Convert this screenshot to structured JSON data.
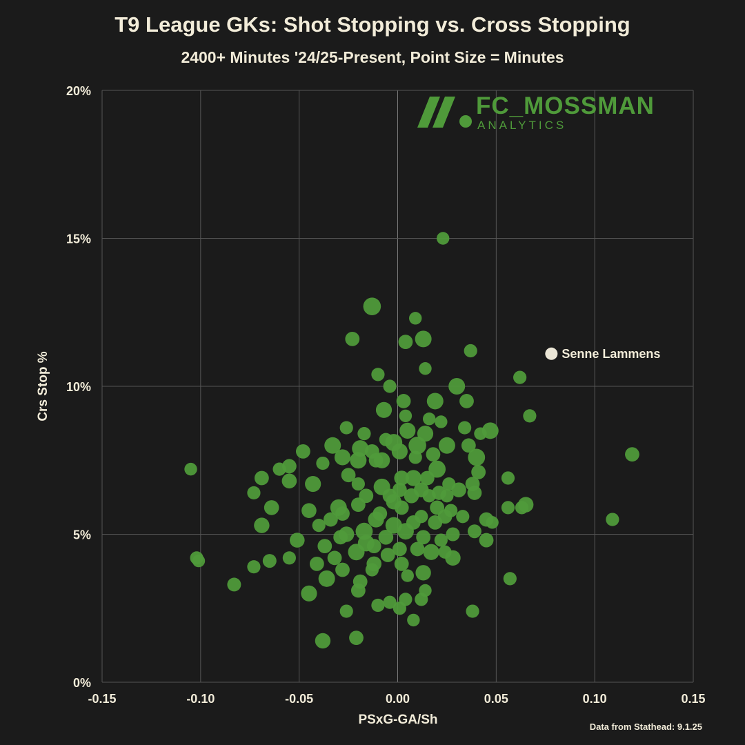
{
  "title": "T9 League GKs: Shot Stopping vs. Cross Stopping",
  "subtitle": "2400+ Minutes '24/25-Present, Point Size = Minutes",
  "source": "Data from Stathead: 9.1.25",
  "logo": {
    "main": "FC_MOSSMAN",
    "sub": "ANALYTICS"
  },
  "colors": {
    "background": "#1b1b1b",
    "point": "#4f9a3a",
    "highlight": "#ebe6d6",
    "text": "#f2ecd9",
    "grid": "#555555",
    "logo": "#4f9a3a"
  },
  "chart_data": {
    "type": "scatter",
    "title": "T9 League GKs: Shot Stopping vs. Cross Stopping",
    "xlabel": "PSxG-GA/Sh",
    "ylabel": "Crs Stop %",
    "xlim": [
      -0.15,
      0.15
    ],
    "ylim": [
      0,
      20
    ],
    "xticks": [
      -0.15,
      -0.1,
      -0.05,
      0.0,
      0.05,
      0.1,
      0.15
    ],
    "xtick_labels": [
      "-0.15",
      "-0.10",
      "-0.05",
      "0.00",
      "0.05",
      "0.10",
      "0.15"
    ],
    "yticks": [
      0,
      5,
      10,
      15,
      20
    ],
    "ytick_labels": [
      "0%",
      "5%",
      "10%",
      "15%",
      "20%"
    ],
    "grid": true,
    "size_encoding": "Minutes (relative)",
    "highlight": {
      "label": "Senne Lammens",
      "x": 0.078,
      "y": 11.1,
      "s": 0.4
    },
    "points": [
      [
        0.023,
        15.0,
        0.4
      ],
      [
        -0.013,
        12.7,
        0.85
      ],
      [
        0.009,
        12.3,
        0.4
      ],
      [
        -0.023,
        11.6,
        0.55
      ],
      [
        0.004,
        11.5,
        0.55
      ],
      [
        0.013,
        11.6,
        0.75
      ],
      [
        0.037,
        11.2,
        0.45
      ],
      [
        0.014,
        10.6,
        0.4
      ],
      [
        -0.01,
        10.4,
        0.45
      ],
      [
        0.062,
        10.3,
        0.45
      ],
      [
        0.03,
        10.0,
        0.75
      ],
      [
        -0.004,
        10.0,
        0.45
      ],
      [
        0.003,
        9.5,
        0.55
      ],
      [
        0.019,
        9.5,
        0.75
      ],
      [
        0.035,
        9.5,
        0.55
      ],
      [
        -0.007,
        9.2,
        0.7
      ],
      [
        0.004,
        9.0,
        0.4
      ],
      [
        0.067,
        9.0,
        0.45
      ],
      [
        0.016,
        8.9,
        0.4
      ],
      [
        -0.026,
        8.6,
        0.45
      ],
      [
        0.022,
        8.8,
        0.4
      ],
      [
        0.034,
        8.6,
        0.45
      ],
      [
        0.047,
        8.5,
        0.75
      ],
      [
        0.005,
        8.5,
        0.7
      ],
      [
        0.014,
        8.4,
        0.7
      ],
      [
        0.042,
        8.4,
        0.4
      ],
      [
        -0.017,
        8.4,
        0.45
      ],
      [
        -0.006,
        8.2,
        0.45
      ],
      [
        -0.002,
        8.1,
        0.8
      ],
      [
        0.01,
        8.0,
        0.85
      ],
      [
        0.025,
        8.0,
        0.75
      ],
      [
        0.036,
        8.0,
        0.55
      ],
      [
        -0.033,
        8.0,
        0.75
      ],
      [
        -0.019,
        7.9,
        0.75
      ],
      [
        -0.013,
        7.8,
        0.55
      ],
      [
        0.001,
        7.8,
        0.7
      ],
      [
        0.018,
        7.7,
        0.55
      ],
      [
        0.009,
        7.6,
        0.45
      ],
      [
        -0.048,
        7.8,
        0.55
      ],
      [
        -0.028,
        7.6,
        0.7
      ],
      [
        -0.02,
        7.5,
        0.75
      ],
      [
        -0.008,
        7.5,
        0.7
      ],
      [
        -0.011,
        7.5,
        0.55
      ],
      [
        0.04,
        7.6,
        0.8
      ],
      [
        0.119,
        7.7,
        0.55
      ],
      [
        -0.105,
        7.2,
        0.4
      ],
      [
        -0.06,
        7.2,
        0.45
      ],
      [
        -0.055,
        7.3,
        0.55
      ],
      [
        -0.038,
        7.4,
        0.45
      ],
      [
        0.02,
        7.2,
        0.8
      ],
      [
        0.041,
        7.1,
        0.55
      ],
      [
        0.002,
        6.9,
        0.6
      ],
      [
        0.008,
        6.9,
        0.7
      ],
      [
        0.015,
        6.9,
        0.55
      ],
      [
        -0.025,
        7.0,
        0.55
      ],
      [
        -0.069,
        6.9,
        0.55
      ],
      [
        -0.055,
        6.8,
        0.6
      ],
      [
        -0.043,
        6.7,
        0.7
      ],
      [
        0.056,
        6.9,
        0.45
      ],
      [
        0.038,
        6.7,
        0.55
      ],
      [
        0.026,
        6.7,
        0.45
      ],
      [
        -0.02,
        6.7,
        0.45
      ],
      [
        -0.008,
        6.6,
        0.75
      ],
      [
        0.001,
        6.5,
        0.55
      ],
      [
        0.012,
        6.5,
        0.6
      ],
      [
        0.021,
        6.4,
        0.55
      ],
      [
        0.031,
        6.5,
        0.6
      ],
      [
        -0.073,
        6.4,
        0.45
      ],
      [
        -0.016,
        6.3,
        0.55
      ],
      [
        -0.004,
        6.3,
        0.55
      ],
      [
        0.007,
        6.3,
        0.6
      ],
      [
        0.016,
        6.3,
        0.45
      ],
      [
        0.025,
        6.3,
        0.45
      ],
      [
        0.039,
        6.4,
        0.55
      ],
      [
        -0.002,
        6.1,
        0.65
      ],
      [
        -0.02,
        6.0,
        0.55
      ],
      [
        -0.03,
        5.9,
        0.75
      ],
      [
        -0.064,
        5.9,
        0.6
      ],
      [
        0.056,
        5.9,
        0.45
      ],
      [
        0.063,
        5.9,
        0.45
      ],
      [
        0.065,
        6.0,
        0.65
      ],
      [
        0.002,
        5.9,
        0.55
      ],
      [
        0.02,
        5.9,
        0.55
      ],
      [
        0.027,
        5.8,
        0.45
      ],
      [
        -0.045,
        5.8,
        0.6
      ],
      [
        -0.028,
        5.7,
        0.55
      ],
      [
        -0.009,
        5.7,
        0.55
      ],
      [
        0.012,
        5.6,
        0.45
      ],
      [
        0.024,
        5.6,
        0.55
      ],
      [
        0.033,
        5.6,
        0.45
      ],
      [
        -0.011,
        5.5,
        0.7
      ],
      [
        -0.034,
        5.5,
        0.55
      ],
      [
        0.045,
        5.5,
        0.55
      ],
      [
        0.008,
        5.4,
        0.55
      ],
      [
        0.019,
        5.4,
        0.55
      ],
      [
        -0.002,
        5.3,
        0.75
      ],
      [
        0.048,
        5.4,
        0.4
      ],
      [
        -0.04,
        5.3,
        0.45
      ],
      [
        -0.069,
        5.3,
        0.65
      ],
      [
        0.039,
        5.1,
        0.5
      ],
      [
        0.109,
        5.5,
        0.45
      ],
      [
        0.004,
        5.1,
        0.75
      ],
      [
        -0.017,
        5.1,
        0.8
      ],
      [
        -0.026,
        5.0,
        0.65
      ],
      [
        0.028,
        5.0,
        0.5
      ],
      [
        -0.006,
        4.9,
        0.6
      ],
      [
        -0.029,
        4.9,
        0.55
      ],
      [
        -0.051,
        4.8,
        0.6
      ],
      [
        0.013,
        4.9,
        0.55
      ],
      [
        0.045,
        4.8,
        0.55
      ],
      [
        0.022,
        4.8,
        0.45
      ],
      [
        -0.016,
        4.7,
        0.75
      ],
      [
        -0.012,
        4.6,
        0.55
      ],
      [
        -0.037,
        4.6,
        0.55
      ],
      [
        0.001,
        4.5,
        0.55
      ],
      [
        0.01,
        4.5,
        0.55
      ],
      [
        0.017,
        4.4,
        0.7
      ],
      [
        0.024,
        4.4,
        0.45
      ],
      [
        -0.021,
        4.4,
        0.75
      ],
      [
        -0.005,
        4.3,
        0.55
      ],
      [
        -0.032,
        4.2,
        0.55
      ],
      [
        -0.055,
        4.2,
        0.45
      ],
      [
        -0.102,
        4.2,
        0.45
      ],
      [
        -0.101,
        4.1,
        0.4
      ],
      [
        -0.065,
        4.1,
        0.5
      ],
      [
        -0.041,
        4.0,
        0.55
      ],
      [
        -0.012,
        4.0,
        0.6
      ],
      [
        0.002,
        4.0,
        0.55
      ],
      [
        0.028,
        4.2,
        0.65
      ],
      [
        -0.028,
        3.8,
        0.55
      ],
      [
        -0.073,
        3.9,
        0.45
      ],
      [
        -0.013,
        3.8,
        0.45
      ],
      [
        0.013,
        3.7,
        0.65
      ],
      [
        0.005,
        3.6,
        0.4
      ],
      [
        0.057,
        3.5,
        0.45
      ],
      [
        -0.036,
        3.5,
        0.75
      ],
      [
        -0.019,
        3.4,
        0.55
      ],
      [
        -0.083,
        3.3,
        0.5
      ],
      [
        -0.02,
        3.1,
        0.55
      ],
      [
        0.014,
        3.1,
        0.4
      ],
      [
        -0.045,
        3.0,
        0.7
      ],
      [
        0.004,
        2.8,
        0.45
      ],
      [
        0.012,
        2.8,
        0.45
      ],
      [
        -0.004,
        2.7,
        0.45
      ],
      [
        -0.01,
        2.6,
        0.45
      ],
      [
        0.001,
        2.5,
        0.45
      ],
      [
        0.038,
        2.4,
        0.45
      ],
      [
        -0.026,
        2.4,
        0.45
      ],
      [
        0.008,
        2.1,
        0.4
      ],
      [
        -0.021,
        1.5,
        0.55
      ],
      [
        -0.038,
        1.4,
        0.65
      ]
    ]
  }
}
